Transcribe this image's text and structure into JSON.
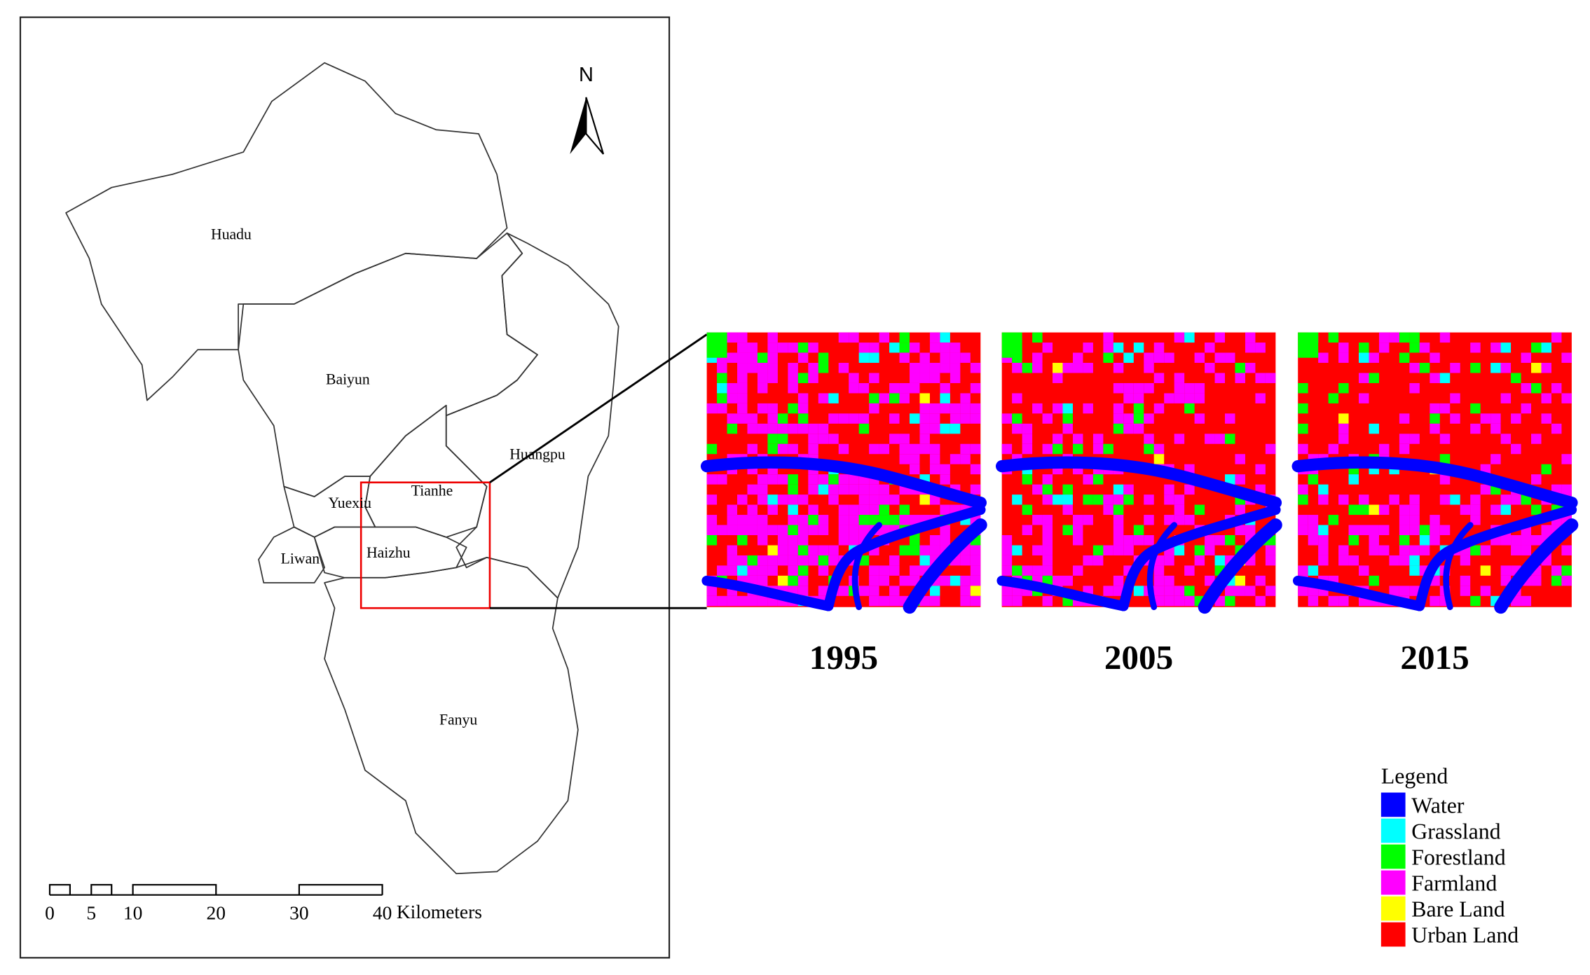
{
  "map": {
    "districts": [
      "Huadu",
      "Baiyun",
      "Huangpu",
      "Tianhe",
      "Yuexiu",
      "Liwan",
      "Haizhu",
      "Fanyu"
    ],
    "north_label": "N",
    "scale_bar": {
      "ticks": [
        "0",
        "5",
        "10",
        "20",
        "30",
        "40"
      ],
      "unit": "Kilometers"
    }
  },
  "panels": {
    "years": [
      "1995",
      "2005",
      "2015"
    ]
  },
  "legend": {
    "title": "Legend",
    "items": [
      {
        "label": "Water",
        "color": "#0000ff"
      },
      {
        "label": "Grassland",
        "color": "#00ffff"
      },
      {
        "label": "Forestland",
        "color": "#00ff00"
      },
      {
        "label": "Farmland",
        "color": "#ff00ff"
      },
      {
        "label": "Bare Land",
        "color": "#ffff00"
      },
      {
        "label": "Urban Land",
        "color": "#ff0000"
      }
    ]
  }
}
